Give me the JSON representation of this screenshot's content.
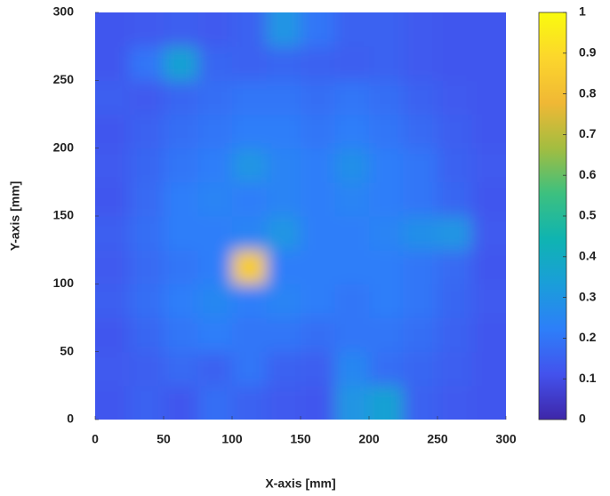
{
  "chart_data": {
    "type": "heatmap",
    "xlabel": "X-axis [mm]",
    "ylabel": "Y-axis [mm]",
    "x": [
      12.5,
      37.5,
      62.5,
      87.5,
      112.5,
      137.5,
      162.5,
      187.5,
      212.5,
      237.5,
      262.5,
      287.5
    ],
    "y": [
      12.5,
      37.5,
      62.5,
      87.5,
      112.5,
      137.5,
      162.5,
      187.5,
      212.5,
      237.5,
      262.5,
      287.5
    ],
    "z": [
      [
        0.12,
        0.15,
        0.12,
        0.18,
        0.15,
        0.13,
        0.12,
        0.3,
        0.35,
        0.15,
        0.13,
        0.12
      ],
      [
        0.13,
        0.14,
        0.17,
        0.15,
        0.2,
        0.15,
        0.14,
        0.25,
        0.18,
        0.16,
        0.14,
        0.12
      ],
      [
        0.12,
        0.16,
        0.2,
        0.22,
        0.2,
        0.2,
        0.18,
        0.2,
        0.2,
        0.18,
        0.15,
        0.12
      ],
      [
        0.14,
        0.18,
        0.22,
        0.25,
        0.22,
        0.24,
        0.22,
        0.2,
        0.22,
        0.2,
        0.16,
        0.13
      ],
      [
        0.13,
        0.17,
        0.2,
        0.22,
        0.85,
        0.22,
        0.22,
        0.22,
        0.22,
        0.2,
        0.17,
        0.12
      ],
      [
        0.14,
        0.18,
        0.22,
        0.22,
        0.24,
        0.3,
        0.22,
        0.22,
        0.24,
        0.28,
        0.3,
        0.13
      ],
      [
        0.12,
        0.17,
        0.22,
        0.24,
        0.22,
        0.24,
        0.22,
        0.24,
        0.22,
        0.2,
        0.16,
        0.12
      ],
      [
        0.13,
        0.16,
        0.2,
        0.22,
        0.3,
        0.24,
        0.22,
        0.28,
        0.22,
        0.2,
        0.15,
        0.13
      ],
      [
        0.12,
        0.15,
        0.18,
        0.2,
        0.22,
        0.22,
        0.2,
        0.22,
        0.2,
        0.17,
        0.14,
        0.12
      ],
      [
        0.14,
        0.13,
        0.16,
        0.18,
        0.2,
        0.2,
        0.18,
        0.2,
        0.18,
        0.15,
        0.13,
        0.12
      ],
      [
        0.12,
        0.2,
        0.35,
        0.16,
        0.15,
        0.16,
        0.15,
        0.14,
        0.15,
        0.13,
        0.12,
        0.12
      ],
      [
        0.12,
        0.13,
        0.14,
        0.13,
        0.15,
        0.3,
        0.2,
        0.15,
        0.15,
        0.13,
        0.12,
        0.12
      ]
    ],
    "xlim": [
      0,
      300
    ],
    "xticks": [
      0,
      50,
      100,
      150,
      200,
      250,
      300
    ],
    "ylim": [
      0,
      300
    ],
    "yticks": [
      0,
      50,
      100,
      150,
      200,
      250,
      300
    ],
    "zlim": [
      0,
      1
    ],
    "zticks": [
      0,
      0.1,
      0.2,
      0.3,
      0.4,
      0.5,
      0.6,
      0.7,
      0.8,
      0.9,
      1
    ],
    "colormap": [
      "#3e26a8",
      "#4352ed",
      "#2d7ff9",
      "#1a9ed9",
      "#0fb4b1",
      "#3dc07f",
      "#a3bd40",
      "#f0b835",
      "#fcd62c",
      "#f9fb0e"
    ]
  }
}
